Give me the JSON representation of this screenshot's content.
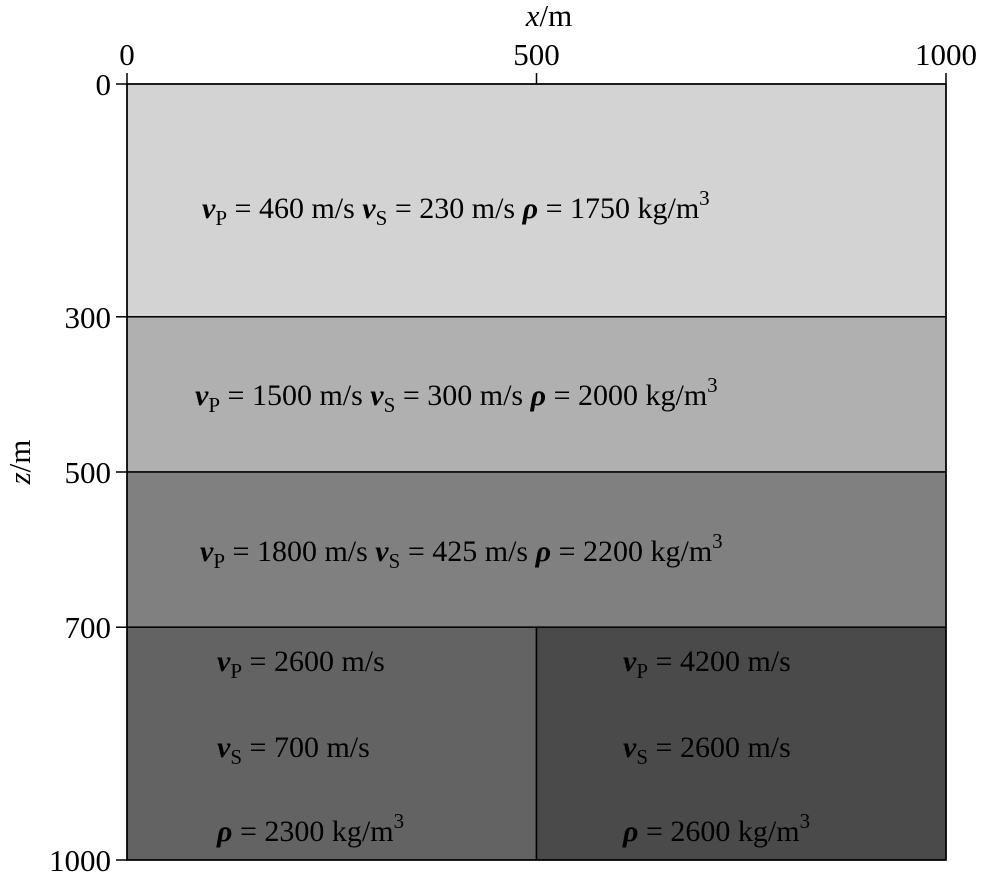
{
  "x_axis": {
    "label_var": "x",
    "label_unit": "/m",
    "ticks": [
      "0",
      "500",
      "1000"
    ],
    "range": [
      0,
      1000
    ]
  },
  "z_axis": {
    "label_var": "z",
    "label_unit": "/m",
    "ticks": [
      "0",
      "300",
      "500",
      "700",
      "1000"
    ],
    "range": [
      0,
      1000
    ]
  },
  "layers": [
    {
      "x_range": [
        0,
        1000
      ],
      "z_range": [
        0,
        300
      ],
      "color": "#d3d3d3",
      "vp": "460 m/s",
      "vs": "230 m/s",
      "rho_value": "1750 kg/m",
      "rho_exp": "3"
    },
    {
      "x_range": [
        0,
        1000
      ],
      "z_range": [
        300,
        500
      ],
      "color": "#b0b0b0",
      "vp": "1500 m/s",
      "vs": "300 m/s",
      "rho_value": "2000 kg/m",
      "rho_exp": "3"
    },
    {
      "x_range": [
        0,
        1000
      ],
      "z_range": [
        500,
        700
      ],
      "color": "#808080",
      "vp": "1800 m/s",
      "vs": "425 m/s",
      "rho_value": "2200 kg/m",
      "rho_exp": "3"
    },
    {
      "x_range": [
        0,
        500
      ],
      "z_range": [
        700,
        1000
      ],
      "color": "#636363",
      "vp": "2600 m/s",
      "vs": "700 m/s",
      "rho_value": "2300 kg/m",
      "rho_exp": "3"
    },
    {
      "x_range": [
        500,
        1000
      ],
      "z_range": [
        700,
        1000
      ],
      "color": "#4a4a4a",
      "vp": "4200 m/s",
      "vs": "2600 m/s",
      "rho_value": "2600 kg/m",
      "rho_exp": "3"
    }
  ],
  "symbols": {
    "v": "v",
    "p_sub": "P",
    "s_sub": "S",
    "rho": "ρ",
    "equals": " = "
  }
}
